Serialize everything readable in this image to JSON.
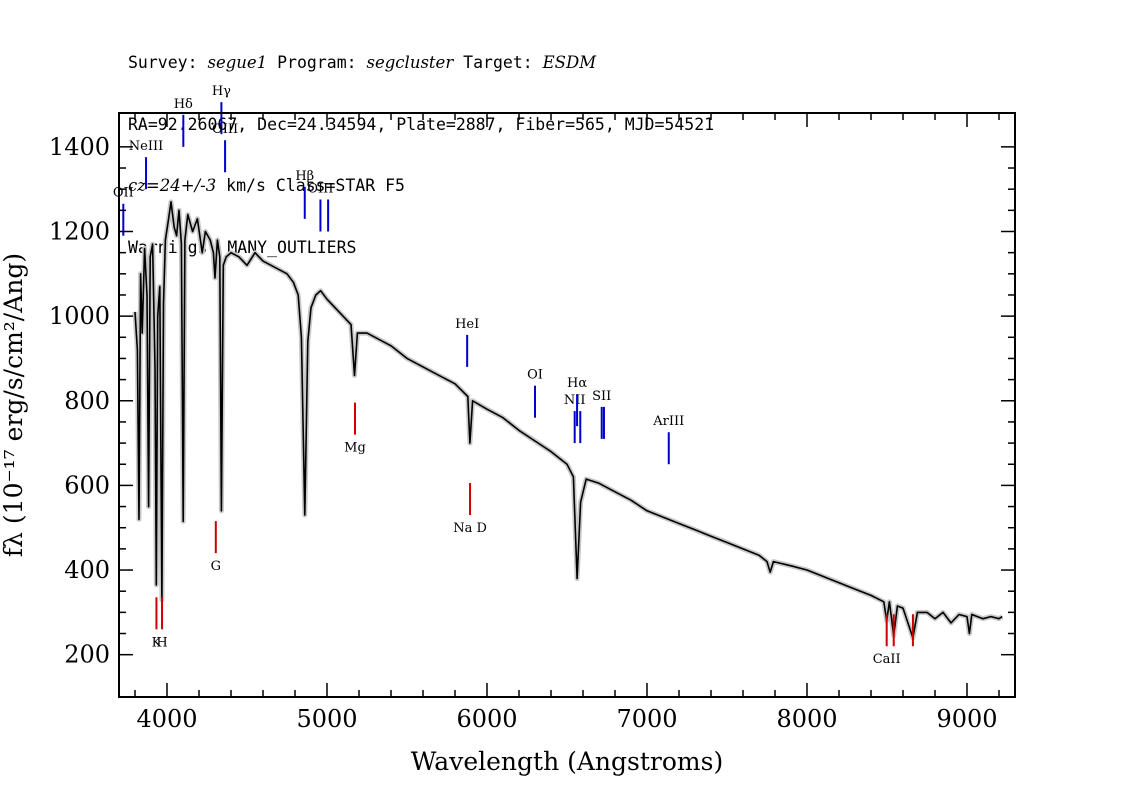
{
  "header": {
    "line1": {
      "survey_label": "Survey: ",
      "survey": "segue1",
      "program_label": " Program: ",
      "program": "segcluster",
      "target_label": " Target: ",
      "target": "ESDM"
    },
    "line2": "RA=92.26067, Dec=24.34594, Plate=2887, Fiber=565, MJD=54521",
    "line3": {
      "cz_label": "cz=24+/-3",
      "rest": " km/s Class=STAR F5"
    },
    "line4": "Warnings: MANY_OUTLIERS"
  },
  "chart_data": {
    "type": "line",
    "xlabel": "Wavelength (Angstroms)",
    "ylabel": "fλ (10⁻¹⁷ erg/s/cm²/Ang)",
    "xlim": [
      3700,
      9300
    ],
    "ylim": [
      100,
      1480
    ],
    "xticks": [
      4000,
      5000,
      6000,
      7000,
      8000,
      9000
    ],
    "yticks": [
      200,
      400,
      600,
      800,
      1000,
      1200,
      1400
    ],
    "series": [
      {
        "color": "#000000",
        "points": [
          [
            3800,
            1010
          ],
          [
            3815,
            920
          ],
          [
            3825,
            520
          ],
          [
            3835,
            1100
          ],
          [
            3845,
            960
          ],
          [
            3860,
            1160
          ],
          [
            3875,
            1050
          ],
          [
            3885,
            550
          ],
          [
            3895,
            1140
          ],
          [
            3910,
            1170
          ],
          [
            3925,
            880
          ],
          [
            3933,
            365
          ],
          [
            3942,
            1000
          ],
          [
            3955,
            1070
          ],
          [
            3968,
            330
          ],
          [
            3978,
            1030
          ],
          [
            3990,
            1180
          ],
          [
            4010,
            1230
          ],
          [
            4025,
            1270
          ],
          [
            4045,
            1210
          ],
          [
            4060,
            1190
          ],
          [
            4075,
            1250
          ],
          [
            4090,
            1170
          ],
          [
            4101,
            515
          ],
          [
            4112,
            1180
          ],
          [
            4130,
            1240
          ],
          [
            4160,
            1200
          ],
          [
            4190,
            1230
          ],
          [
            4220,
            1150
          ],
          [
            4240,
            1200
          ],
          [
            4270,
            1180
          ],
          [
            4290,
            1150
          ],
          [
            4300,
            1090
          ],
          [
            4315,
            1180
          ],
          [
            4330,
            1140
          ],
          [
            4340,
            540
          ],
          [
            4352,
            1120
          ],
          [
            4370,
            1140
          ],
          [
            4400,
            1150
          ],
          [
            4450,
            1140
          ],
          [
            4500,
            1120
          ],
          [
            4550,
            1150
          ],
          [
            4600,
            1130
          ],
          [
            4650,
            1120
          ],
          [
            4700,
            1110
          ],
          [
            4750,
            1100
          ],
          [
            4790,
            1080
          ],
          [
            4820,
            1050
          ],
          [
            4840,
            950
          ],
          [
            4861,
            530
          ],
          [
            4880,
            940
          ],
          [
            4900,
            1020
          ],
          [
            4930,
            1050
          ],
          [
            4960,
            1060
          ],
          [
            5000,
            1040
          ],
          [
            5050,
            1020
          ],
          [
            5100,
            1000
          ],
          [
            5150,
            980
          ],
          [
            5172,
            860
          ],
          [
            5190,
            960
          ],
          [
            5250,
            960
          ],
          [
            5300,
            950
          ],
          [
            5400,
            930
          ],
          [
            5500,
            900
          ],
          [
            5600,
            880
          ],
          [
            5700,
            860
          ],
          [
            5800,
            840
          ],
          [
            5880,
            810
          ],
          [
            5893,
            700
          ],
          [
            5910,
            800
          ],
          [
            6000,
            780
          ],
          [
            6100,
            760
          ],
          [
            6200,
            730
          ],
          [
            6300,
            705
          ],
          [
            6400,
            680
          ],
          [
            6500,
            650
          ],
          [
            6540,
            620
          ],
          [
            6563,
            380
          ],
          [
            6585,
            560
          ],
          [
            6620,
            615
          ],
          [
            6700,
            605
          ],
          [
            6800,
            585
          ],
          [
            6900,
            565
          ],
          [
            7000,
            540
          ],
          [
            7100,
            525
          ],
          [
            7200,
            510
          ],
          [
            7300,
            495
          ],
          [
            7400,
            480
          ],
          [
            7500,
            465
          ],
          [
            7600,
            450
          ],
          [
            7700,
            435
          ],
          [
            7750,
            420
          ],
          [
            7770,
            395
          ],
          [
            7790,
            420
          ],
          [
            7900,
            410
          ],
          [
            8000,
            400
          ],
          [
            8100,
            385
          ],
          [
            8200,
            370
          ],
          [
            8300,
            355
          ],
          [
            8400,
            340
          ],
          [
            8480,
            325
          ],
          [
            8498,
            280
          ],
          [
            8515,
            325
          ],
          [
            8542,
            245
          ],
          [
            8565,
            315
          ],
          [
            8600,
            310
          ],
          [
            8662,
            240
          ],
          [
            8690,
            300
          ],
          [
            8750,
            300
          ],
          [
            8800,
            285
          ],
          [
            8850,
            300
          ],
          [
            8900,
            275
          ],
          [
            8950,
            295
          ],
          [
            9000,
            290
          ],
          [
            9015,
            250
          ],
          [
            9030,
            295
          ],
          [
            9100,
            285
          ],
          [
            9150,
            290
          ],
          [
            9200,
            285
          ],
          [
            9220,
            290
          ]
        ]
      }
    ],
    "emission_lines": [
      {
        "label": "OII",
        "wavelength": 3727,
        "y": 1190,
        "color": "#0000cc"
      },
      {
        "label": "NeIII",
        "wavelength": 3869,
        "y": 1300,
        "color": "#0000cc"
      },
      {
        "label": "Hδ",
        "wavelength": 4102,
        "y": 1400,
        "color": "#0000cc"
      },
      {
        "label": "Hγ",
        "wavelength": 4340,
        "y": 1430,
        "color": "#0000cc"
      },
      {
        "label": "OIII",
        "wavelength": 4363,
        "y": 1340,
        "color": "#0000cc"
      },
      {
        "label": "Hβ",
        "wavelength": 4861,
        "y": 1230,
        "color": "#0000cc"
      },
      {
        "label": "OIII",
        "wavelength": 4959,
        "y": 1200,
        "color": "#0000cc"
      },
      {
        "label": "",
        "wavelength": 5007,
        "y": 1200,
        "color": "#0000cc"
      },
      {
        "label": "HeI",
        "wavelength": 5876,
        "y": 880,
        "color": "#0000cc"
      },
      {
        "label": "OI",
        "wavelength": 6300,
        "y": 760,
        "color": "#0000cc"
      },
      {
        "label": "NII",
        "wavelength": 6548,
        "y": 700,
        "color": "#0000cc"
      },
      {
        "label": "Hα",
        "wavelength": 6563,
        "y": 740,
        "color": "#0000cc"
      },
      {
        "label": "",
        "wavelength": 6583,
        "y": 700,
        "color": "#0000cc"
      },
      {
        "label": "SII",
        "wavelength": 6717,
        "y": 710,
        "color": "#0000cc"
      },
      {
        "label": "",
        "wavelength": 6731,
        "y": 710,
        "color": "#0000cc"
      },
      {
        "label": "ArIII",
        "wavelength": 7136,
        "y": 650,
        "color": "#0000cc"
      }
    ],
    "absorption_lines": [
      {
        "label": "K",
        "wavelength": 3934,
        "y": 260,
        "color": "#cc0000"
      },
      {
        "label": "H",
        "wavelength": 3969,
        "y": 260,
        "color": "#cc0000"
      },
      {
        "label": "G",
        "wavelength": 4305,
        "y": 440,
        "color": "#cc0000"
      },
      {
        "label": "Mg",
        "wavelength": 5175,
        "y": 720,
        "color": "#cc0000"
      },
      {
        "label": "Na D",
        "wavelength": 5894,
        "y": 530,
        "color": "#cc0000"
      },
      {
        "label": "CaII",
        "wavelength": 8498,
        "y": 220,
        "color": "#cc0000"
      },
      {
        "label": "",
        "wavelength": 8542,
        "y": 220,
        "color": "#cc0000"
      },
      {
        "label": "",
        "wavelength": 8662,
        "y": 220,
        "color": "#cc0000"
      }
    ]
  }
}
